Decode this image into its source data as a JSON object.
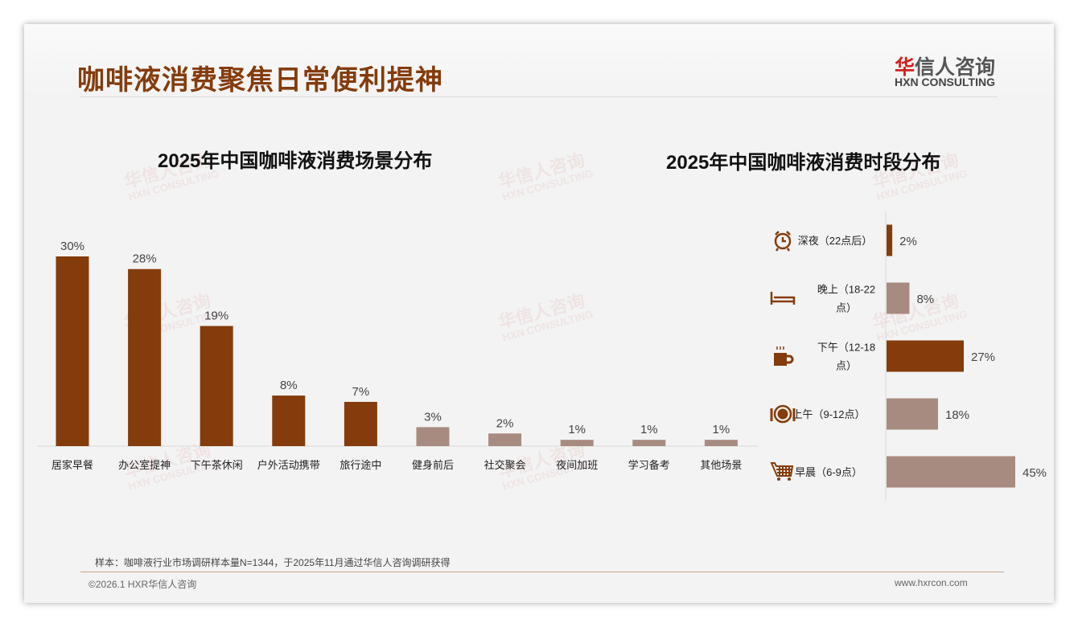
{
  "title": "咖啡液消费聚焦日常便利提神",
  "logo": {
    "cn_mark": "华",
    "cn_rest": "信人咨询",
    "en": "HXN CONSULTING"
  },
  "watermark": {
    "cn": "华信人咨询",
    "en": "HXN CONSULTING"
  },
  "colors": {
    "primary": "#843c0c",
    "secondary": "#a88b80"
  },
  "chart_data": [
    {
      "type": "bar",
      "title": "2025年中国咖啡液消费场景分布",
      "categories": [
        "居家早餐",
        "办公室提神",
        "下午茶休闲",
        "户外活动携带",
        "旅行途中",
        "健身前后",
        "社交聚会",
        "夜间加班",
        "学习备考",
        "其他场景"
      ],
      "values": [
        30,
        28,
        19,
        8,
        7,
        3,
        2,
        1,
        1,
        1
      ],
      "highlight": [
        true,
        true,
        true,
        true,
        true,
        false,
        false,
        false,
        false,
        false
      ],
      "unit": "%",
      "ylim": [
        0,
        30
      ]
    },
    {
      "type": "bar",
      "orientation": "horizontal",
      "title": "2025年中国咖啡液消费时段分布",
      "categories": [
        "深夜（22点后）",
        "晚上（18-22点）",
        "下午（12-18点）",
        "上午（9-12点）",
        "早晨（6-9点）"
      ],
      "label_lines": [
        [
          "深夜（22点后）"
        ],
        [
          "晚上（18-22",
          "点）"
        ],
        [
          "下午（12-18",
          "点）"
        ],
        [
          "上午（9-12点）"
        ],
        [
          "早晨（6-9点）"
        ]
      ],
      "icons": [
        "alarm-clock-icon",
        "bed-icon",
        "coffee-mug-icon",
        "plate-cutlery-icon",
        "shopping-cart-icon"
      ],
      "values": [
        2,
        8,
        27,
        18,
        45
      ],
      "highlight": [
        true,
        false,
        true,
        false,
        false
      ],
      "unit": "%",
      "xlim": [
        0,
        45
      ]
    }
  ],
  "footer": {
    "note": "样本：咖啡液行业市场调研样本量N=1344，于2025年11月通过华信人咨询调研获得",
    "copyright": "©2026.1 HXR华信人咨询",
    "website": "www.hxrcon.com"
  }
}
